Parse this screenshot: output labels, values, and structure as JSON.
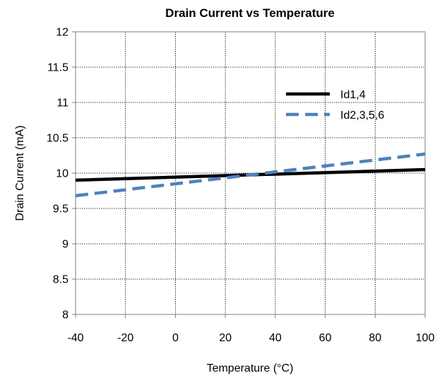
{
  "chart_data": {
    "type": "line",
    "title": "Drain Current vs Temperature",
    "xlabel": "Temperature (°C)",
    "ylabel": "Drain Current (mA)",
    "xlim": [
      -40,
      100
    ],
    "ylim": [
      8,
      12
    ],
    "xticks": [
      -40,
      -20,
      0,
      20,
      40,
      60,
      80,
      100
    ],
    "yticks": [
      8,
      8.5,
      9,
      9.5,
      10,
      10.5,
      11,
      11.5,
      12
    ],
    "xtick_labels": [
      "-40",
      "-20",
      "0",
      "20",
      "40",
      "60",
      "80",
      "100"
    ],
    "ytick_labels": [
      "8",
      "8.5",
      "9",
      "9.5",
      "10",
      "10.5",
      "11",
      "11.5",
      "12"
    ],
    "grid": true,
    "legend_position": "upper-right",
    "series": [
      {
        "name": "Id1,4",
        "color": "#000000",
        "style": "solid",
        "x": [
          -40,
          100
        ],
        "y": [
          9.9,
          10.05
        ]
      },
      {
        "name": "Id2,3,5,6",
        "color": "#4f81bd",
        "style": "dashed",
        "x": [
          -40,
          100
        ],
        "y": [
          9.68,
          10.27
        ]
      }
    ]
  }
}
